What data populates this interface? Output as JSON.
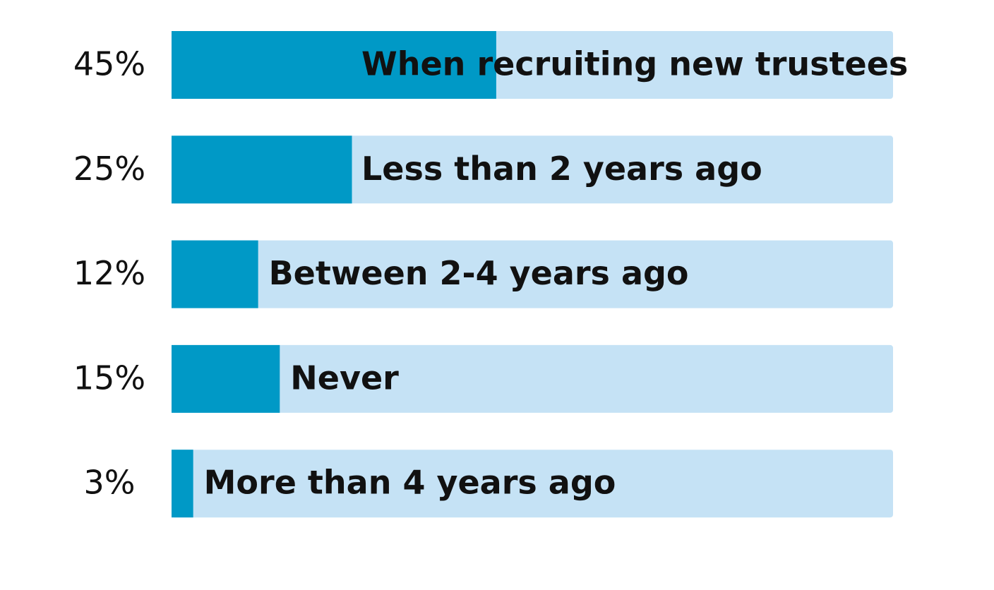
{
  "chart_data": {
    "type": "bar",
    "orientation": "horizontal",
    "categories": [
      "When recruiting new trustees",
      "Less than 2 years ago",
      "Between 2-4 years ago",
      "Never",
      "More than 4 years ago"
    ],
    "values": [
      45,
      25,
      12,
      15,
      3
    ],
    "value_labels": [
      "45%",
      "25%",
      "12%",
      "15%",
      "3%"
    ],
    "xlim": [
      0,
      100
    ],
    "color": "#0099c6",
    "track_color": "#c5e2f5"
  }
}
